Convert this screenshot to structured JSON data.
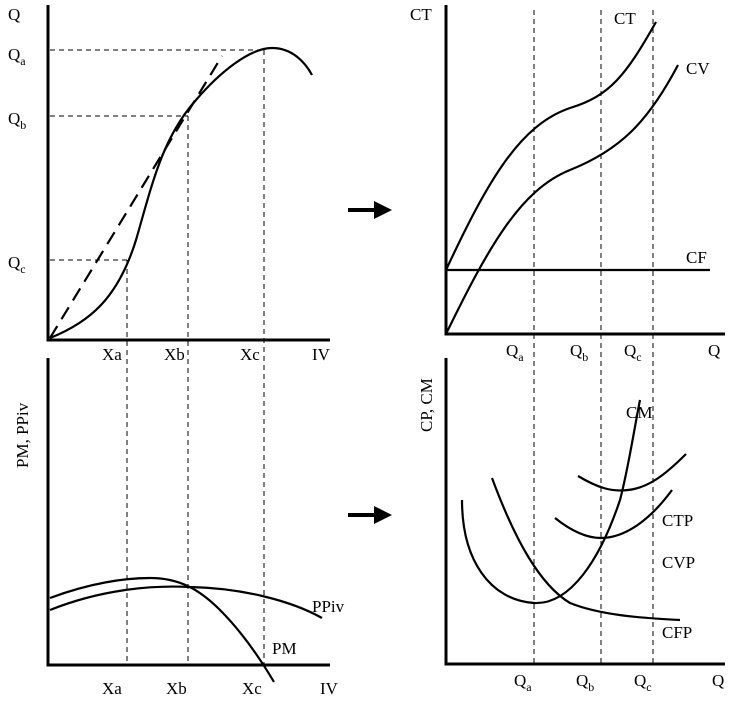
{
  "top_left": {
    "y_axis": "Q",
    "q_levels": [
      {
        "base": "Q",
        "sub": "a"
      },
      {
        "base": "Q",
        "sub": "b"
      },
      {
        "base": "Q",
        "sub": "c"
      }
    ],
    "x_ticks": [
      "Xa",
      "Xb",
      "Xc"
    ],
    "x_axis": "IV"
  },
  "top_right": {
    "y_axis": "CT",
    "curves": {
      "ct": "CT",
      "cv": "CV",
      "cf": "CF"
    },
    "x_ticks": [
      {
        "base": "Q",
        "sub": "a"
      },
      {
        "base": "Q",
        "sub": "b"
      },
      {
        "base": "Q",
        "sub": "c"
      }
    ],
    "x_axis": "Q"
  },
  "bottom_left": {
    "y_axis": "PM, PPiv",
    "curves": {
      "ppiv": "PPiv",
      "pm": "PM"
    },
    "x_ticks": [
      "Xa",
      "Xb",
      "Xc"
    ],
    "x_axis": "IV"
  },
  "bottom_right": {
    "y_axis": "CP, CM",
    "curves": {
      "cm": "CM",
      "ctp": "CTP",
      "cvp": "CVP",
      "cfp": "CFP"
    },
    "x_ticks": [
      {
        "base": "Q",
        "sub": "a"
      },
      {
        "base": "Q",
        "sub": "b"
      },
      {
        "base": "Q",
        "sub": "c"
      }
    ],
    "x_axis": "Q"
  }
}
